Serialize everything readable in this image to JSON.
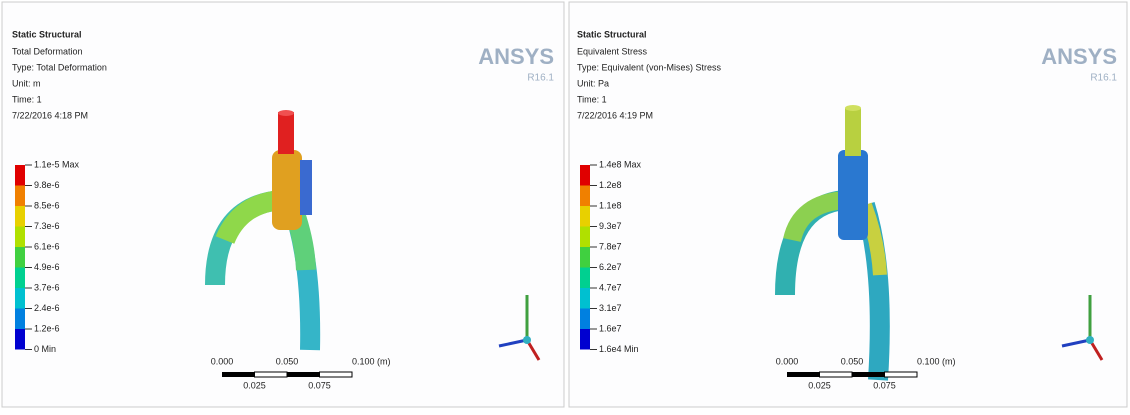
{
  "panels": [
    {
      "title": "Static Structural",
      "lines": [
        "Total Deformation",
        "Type: Total Deformation",
        "Unit: m",
        "Time: 1",
        "7/22/2016 4:18 PM"
      ],
      "logo": "ANSYS",
      "version": "R16.1",
      "legend": [
        "1.1e-5 Max",
        "9.8e-6",
        "8.5e-6",
        "7.3e-6",
        "6.1e-6",
        "4.9e-6",
        "3.7e-6",
        "2.4e-6",
        "1.2e-6",
        "0 Min"
      ],
      "scale": {
        "labels": [
          "0.000",
          "0.050",
          "0.100 (m)"
        ],
        "sub": [
          "0.025",
          "0.075"
        ]
      }
    },
    {
      "title": "Static Structural",
      "lines": [
        "Equivalent Stress",
        "Type: Equivalent (von-Mises) Stress",
        "Unit: Pa",
        "Time: 1",
        "7/22/2016 4:19 PM"
      ],
      "logo": "ANSYS",
      "version": "R16.1",
      "legend": [
        "1.4e8 Max",
        "1.2e8",
        "1.1e8",
        "9.3e7",
        "7.8e7",
        "6.2e7",
        "4.7e7",
        "3.1e7",
        "1.6e7",
        "1.6e4 Min"
      ],
      "scale": {
        "labels": [
          "0.000",
          "0.050",
          "0.100 (m)"
        ],
        "sub": [
          "0.025",
          "0.075"
        ]
      }
    }
  ]
}
